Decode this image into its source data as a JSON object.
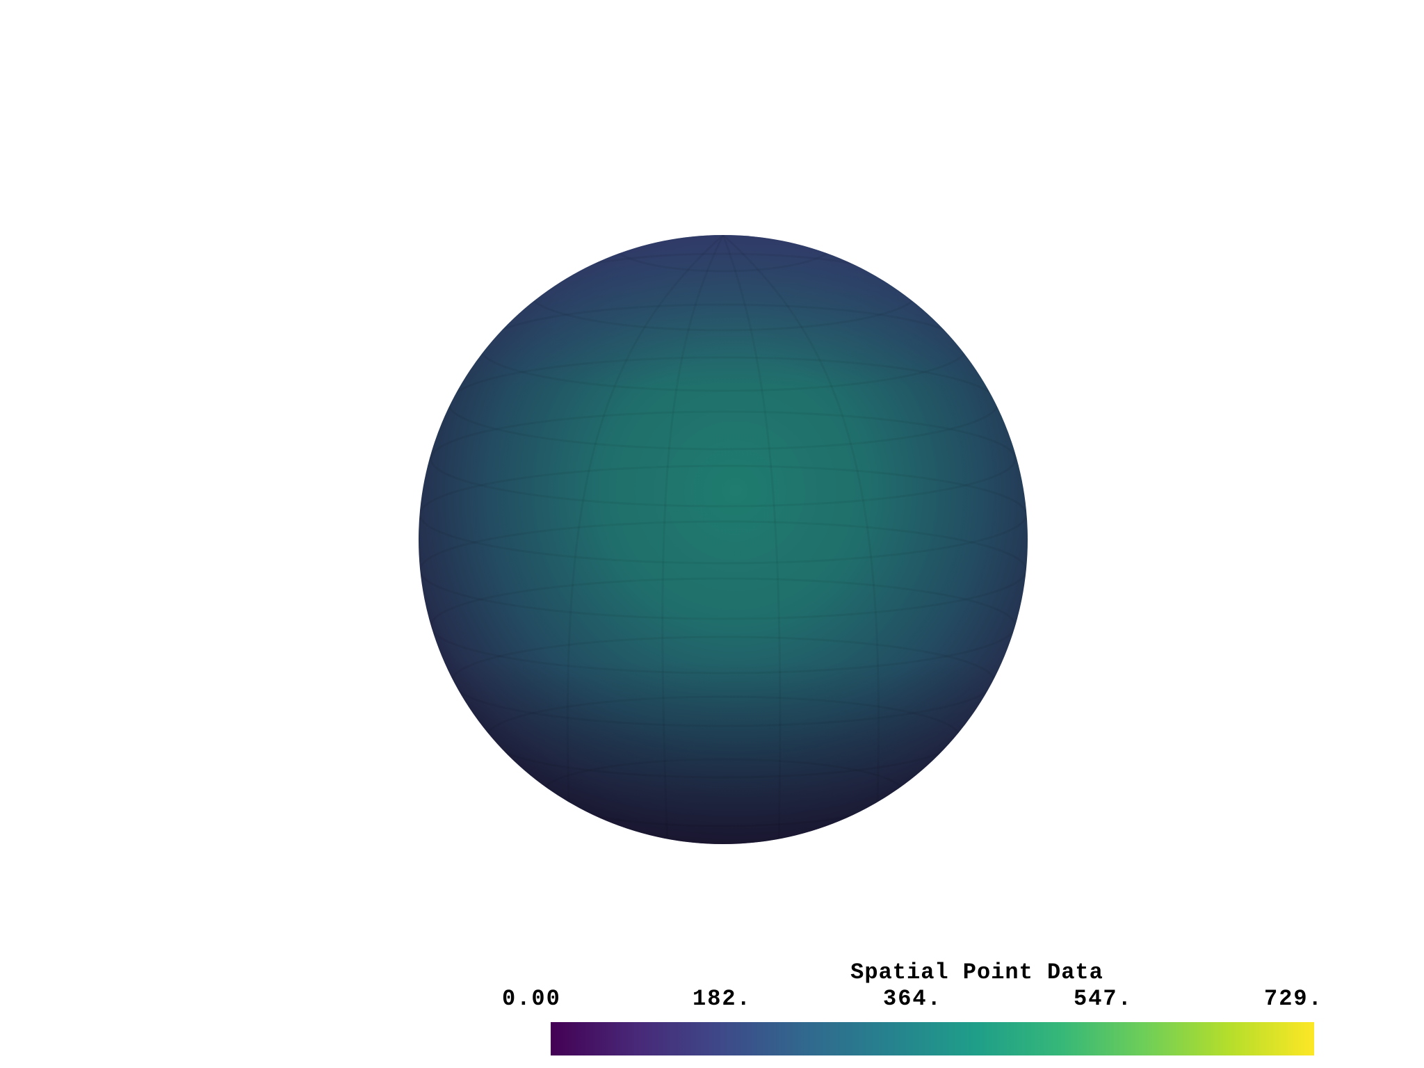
{
  "scene": {
    "object": "sphere",
    "colormap": "viridis"
  },
  "scalar_bar": {
    "title": "Spatial Point Data",
    "labels": [
      "0.00",
      "182.",
      "364.",
      "547.",
      "729."
    ],
    "range": [
      0,
      729
    ],
    "colormap_stops": [
      "#440154",
      "#482878",
      "#3e4989",
      "#31688e",
      "#26828e",
      "#1f9e89",
      "#35b779",
      "#6ece58",
      "#b5de2b",
      "#fde725"
    ]
  }
}
